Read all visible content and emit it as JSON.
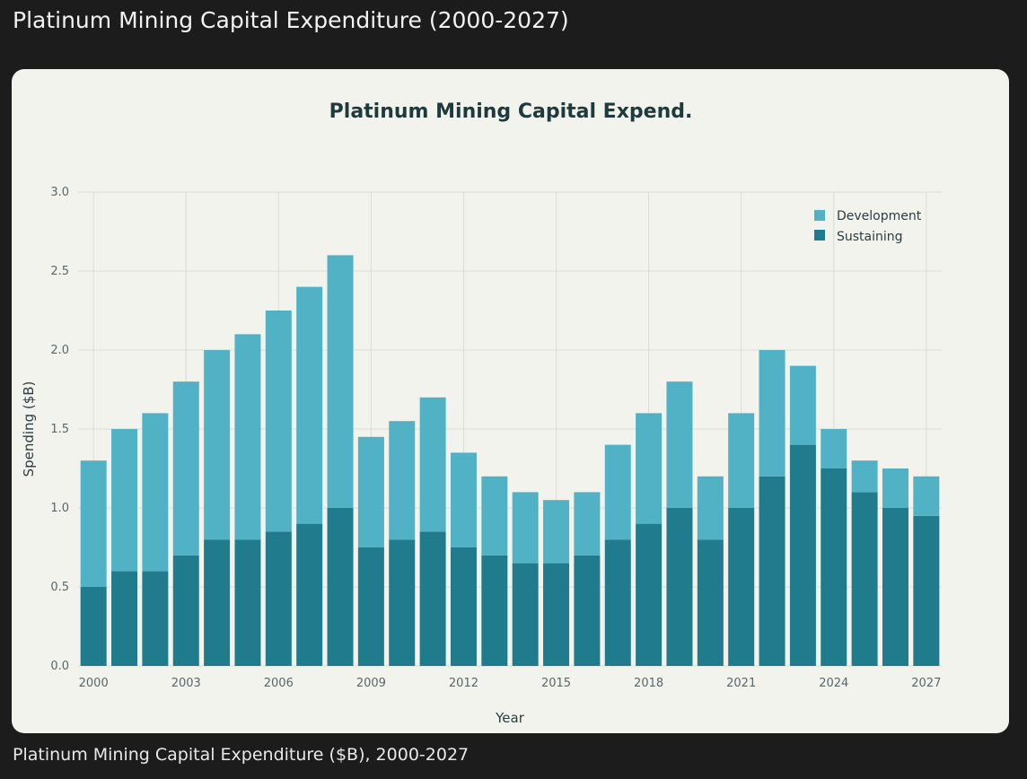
{
  "page_title": "Platinum Mining Capital Expenditure (2000-2027)",
  "caption": "Platinum Mining Capital Expenditure ($B), 2000-2027",
  "chart_data": {
    "type": "bar",
    "stacked": true,
    "title": "Platinum Mining Capital Expend.",
    "xlabel": "Year",
    "ylabel": "Spending ($B)",
    "ylim": [
      0,
      3.0
    ],
    "yticks": [
      "0.0",
      "0.5",
      "1.0",
      "1.5",
      "2.0",
      "2.5",
      "3.0"
    ],
    "xticks": [
      "2000",
      "2003",
      "2006",
      "2009",
      "2012",
      "2015",
      "2018",
      "2021",
      "2024",
      "2027"
    ],
    "grid": true,
    "legend_position": "top-right",
    "categories": [
      2000,
      2001,
      2002,
      2003,
      2004,
      2005,
      2006,
      2007,
      2008,
      2009,
      2010,
      2011,
      2012,
      2013,
      2014,
      2015,
      2016,
      2017,
      2018,
      2019,
      2020,
      2021,
      2022,
      2023,
      2024,
      2025,
      2026,
      2027
    ],
    "series": [
      {
        "name": "Sustaining",
        "color": "#207b8c",
        "values": [
          0.5,
          0.6,
          0.6,
          0.7,
          0.8,
          0.8,
          0.85,
          0.9,
          1.0,
          0.75,
          0.8,
          0.85,
          0.75,
          0.7,
          0.65,
          0.65,
          0.7,
          0.8,
          0.9,
          1.0,
          0.8,
          1.0,
          1.2,
          1.4,
          1.25,
          1.1,
          1.0,
          0.95
        ]
      },
      {
        "name": "Development",
        "color": "#50b2c4",
        "values": [
          0.8,
          0.9,
          1.0,
          1.1,
          1.2,
          1.3,
          1.4,
          1.5,
          1.6,
          0.7,
          0.75,
          0.85,
          0.6,
          0.5,
          0.45,
          0.4,
          0.4,
          0.6,
          0.7,
          0.8,
          0.4,
          0.6,
          0.8,
          0.5,
          0.25,
          0.2,
          0.25,
          0.25
        ]
      }
    ],
    "legend": [
      "Development",
      "Sustaining"
    ]
  }
}
